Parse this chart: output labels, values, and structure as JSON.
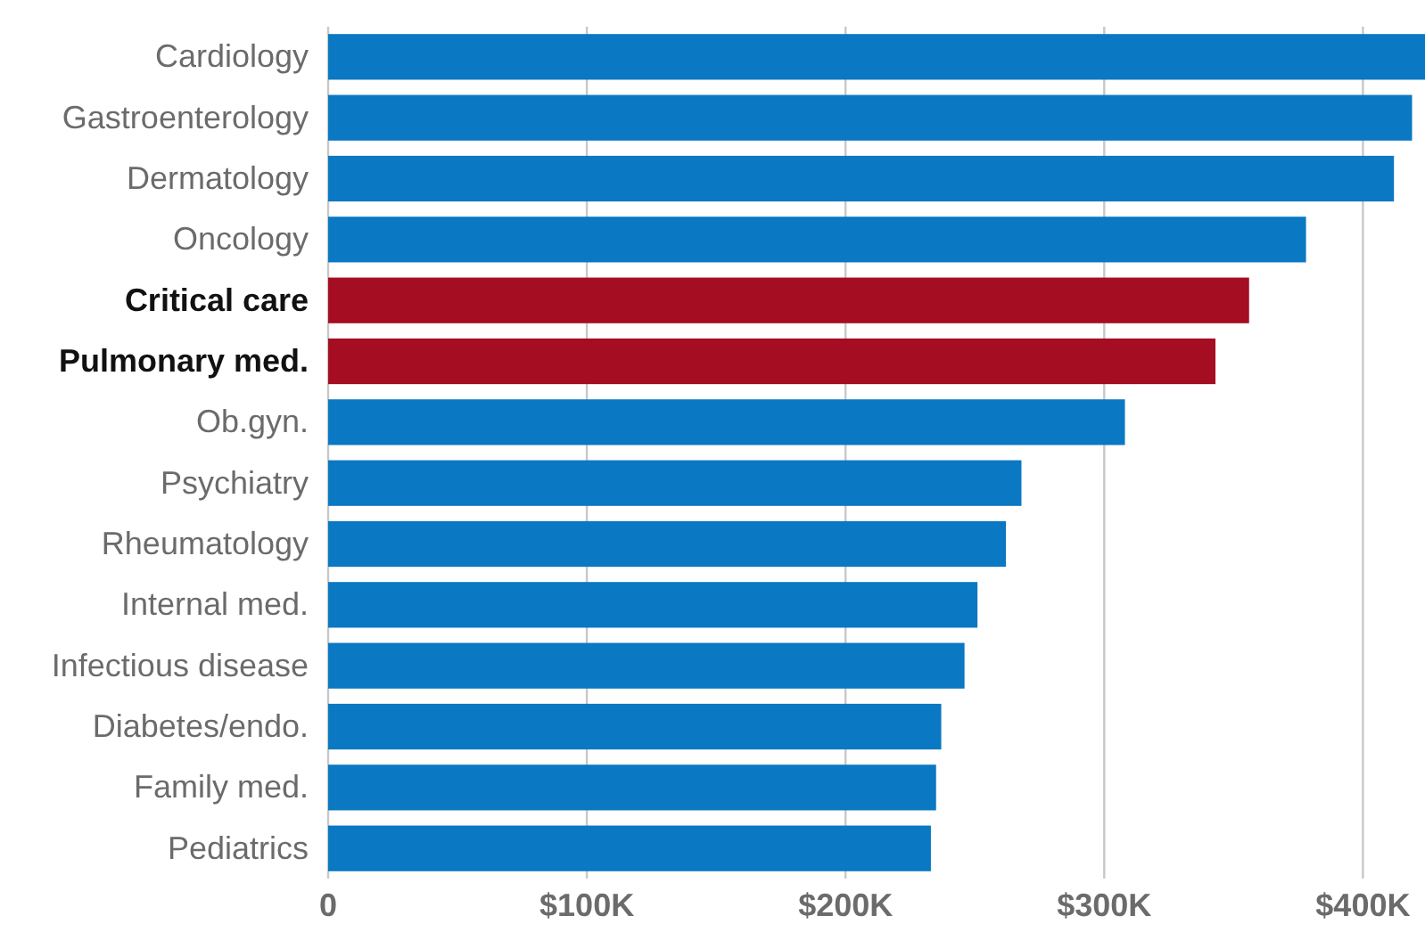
{
  "chart_data": {
    "type": "bar",
    "orientation": "horizontal",
    "categories": [
      "Cardiology",
      "Gastroenterology",
      "Dermatology",
      "Oncology",
      "Critical care",
      "Pulmonary med.",
      "Ob.gyn.",
      "Psychiatry",
      "Rheumatology",
      "Internal med.",
      "Infectious disease",
      "Diabetes/endo.",
      "Family med.",
      "Pediatrics"
    ],
    "values": [
      424000,
      419000,
      412000,
      378000,
      356000,
      343000,
      308000,
      268000,
      262000,
      251000,
      246000,
      237000,
      235000,
      233000
    ],
    "colors": [
      "#0a78c2",
      "#0a78c2",
      "#0a78c2",
      "#0a78c2",
      "#a50d22",
      "#a50d22",
      "#0a78c2",
      "#0a78c2",
      "#0a78c2",
      "#0a78c2",
      "#0a78c2",
      "#0a78c2",
      "#0a78c2",
      "#0a78c2"
    ],
    "xlim": [
      0,
      424000
    ],
    "xticks": [
      0,
      {
        "value": 100000,
        "label": "$100K"
      },
      {
        "value": 200000,
        "label": "$200K"
      },
      {
        "value": 300000,
        "label": "$300K"
      },
      {
        "value": 400000,
        "label": "$400K"
      }
    ],
    "grid": "x"
  }
}
